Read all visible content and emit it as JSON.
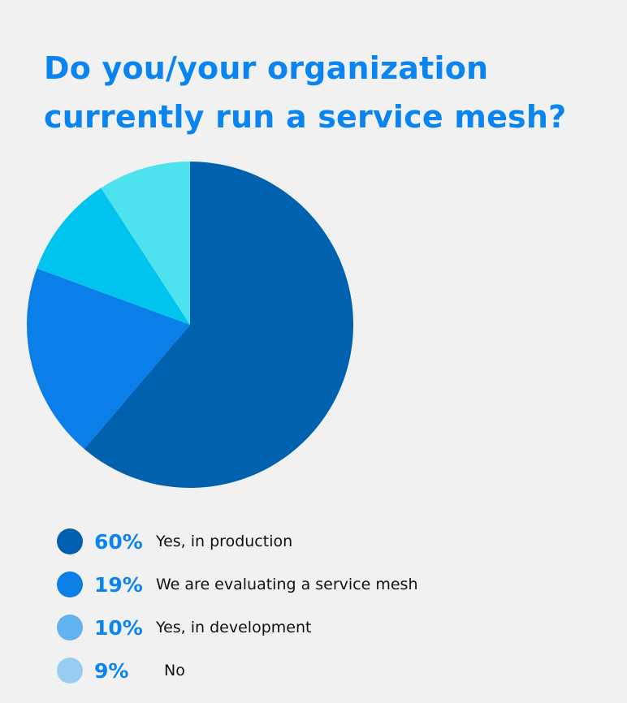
{
  "chart_data": {
    "type": "pie",
    "title": "Do you/your organization currently run a service mesh?",
    "slices": [
      {
        "label": "Yes, in production",
        "value": 60,
        "pct_label": "60%",
        "color": "#0061af",
        "legend_color": "#005fae"
      },
      {
        "label": "We are evaluating a service mesh",
        "value": 19,
        "pct_label": "19%",
        "color": "#0a7fea",
        "legend_color": "#0a7fe8"
      },
      {
        "label": "Yes, in development",
        "value": 10,
        "pct_label": "10%",
        "color": "#00c3ee",
        "legend_color": "#62b2f0"
      },
      {
        "label": "No",
        "value": 9,
        "pct_label": "9%",
        "color": "#4ee2ee",
        "legend_color": "#98cdf2"
      }
    ],
    "legend_placement": "bottom-left"
  }
}
